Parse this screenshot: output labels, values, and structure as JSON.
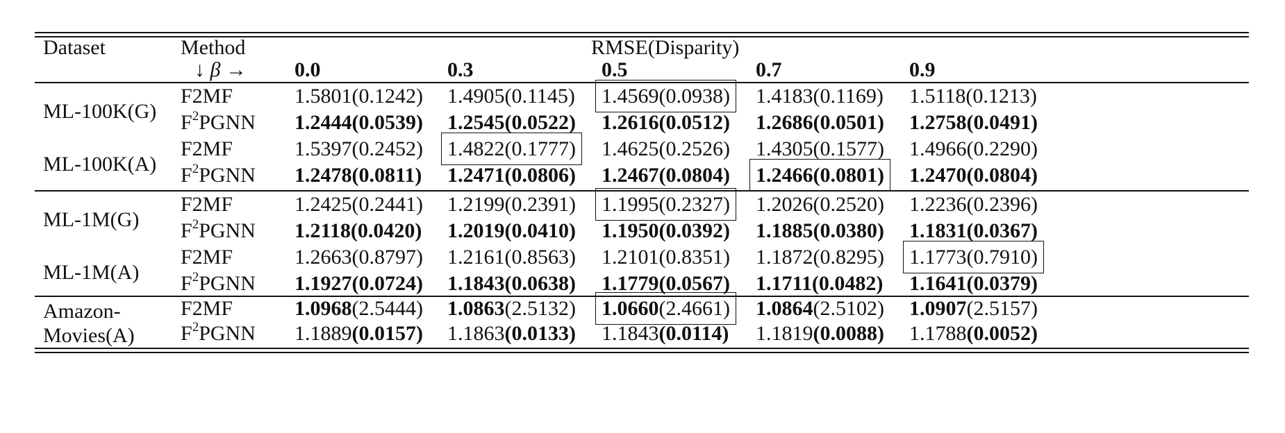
{
  "table": {
    "header": {
      "dataset": "Dataset",
      "method": "Method",
      "metric": "RMSE(Disparity)",
      "beta_label": "↓ β →",
      "betas": [
        "0.0",
        "0.3",
        "0.5",
        "0.7",
        "0.9"
      ]
    },
    "groups": [
      {
        "dataset": "ML-100K(G)",
        "rows": [
          {
            "method": "F2MF",
            "cells": [
              {
                "value": "1.5801",
                "disparity": "0.1242",
                "bold_value": false,
                "bold_disp": false,
                "boxed": false
              },
              {
                "value": "1.4905",
                "disparity": "0.1145",
                "bold_value": false,
                "bold_disp": false,
                "boxed": false
              },
              {
                "value": "1.4569",
                "disparity": "0.0938",
                "bold_value": false,
                "bold_disp": false,
                "boxed": true
              },
              {
                "value": "1.4183",
                "disparity": "0.1169",
                "bold_value": false,
                "bold_disp": false,
                "boxed": false
              },
              {
                "value": "1.5118",
                "disparity": "0.1213",
                "bold_value": false,
                "bold_disp": false,
                "boxed": false
              }
            ]
          },
          {
            "method": "F2PGNN",
            "cells": [
              {
                "value": "1.2444",
                "disparity": "0.0539",
                "bold_value": true,
                "bold_disp": true,
                "boxed": false
              },
              {
                "value": "1.2545",
                "disparity": "0.0522",
                "bold_value": true,
                "bold_disp": true,
                "boxed": false
              },
              {
                "value": "1.2616",
                "disparity": "0.0512",
                "bold_value": true,
                "bold_disp": true,
                "boxed": false
              },
              {
                "value": "1.2686",
                "disparity": "0.0501",
                "bold_value": true,
                "bold_disp": true,
                "boxed": false
              },
              {
                "value": "1.2758",
                "disparity": "0.0491",
                "bold_value": true,
                "bold_disp": true,
                "boxed": false
              }
            ]
          }
        ]
      },
      {
        "dataset": "ML-100K(A)",
        "rows": [
          {
            "method": "F2MF",
            "cells": [
              {
                "value": "1.5397",
                "disparity": "0.2452",
                "bold_value": false,
                "bold_disp": false,
                "boxed": false
              },
              {
                "value": "1.4822",
                "disparity": "0.1777",
                "bold_value": false,
                "bold_disp": false,
                "boxed": true
              },
              {
                "value": "1.4625",
                "disparity": "0.2526",
                "bold_value": false,
                "bold_disp": false,
                "boxed": false
              },
              {
                "value": "1.4305",
                "disparity": "0.1577",
                "bold_value": false,
                "bold_disp": false,
                "boxed": false
              },
              {
                "value": "1.4966",
                "disparity": "0.2290",
                "bold_value": false,
                "bold_disp": false,
                "boxed": false
              }
            ]
          },
          {
            "method": "F2PGNN",
            "cells": [
              {
                "value": "1.2478",
                "disparity": "0.0811",
                "bold_value": true,
                "bold_disp": true,
                "boxed": false
              },
              {
                "value": "1.2471",
                "disparity": "0.0806",
                "bold_value": true,
                "bold_disp": true,
                "boxed": false
              },
              {
                "value": "1.2467",
                "disparity": "0.0804",
                "bold_value": true,
                "bold_disp": true,
                "boxed": false
              },
              {
                "value": "1.2466",
                "disparity": "0.0801",
                "bold_value": true,
                "bold_disp": true,
                "boxed": true
              },
              {
                "value": "1.2470",
                "disparity": "0.0804",
                "bold_value": true,
                "bold_disp": true,
                "boxed": false
              }
            ]
          }
        ]
      },
      {
        "dataset": "ML-1M(G)",
        "rows": [
          {
            "method": "F2MF",
            "cells": [
              {
                "value": "1.2425",
                "disparity": "0.2441",
                "bold_value": false,
                "bold_disp": false,
                "boxed": false
              },
              {
                "value": "1.2199",
                "disparity": "0.2391",
                "bold_value": false,
                "bold_disp": false,
                "boxed": false
              },
              {
                "value": "1.1995",
                "disparity": "0.2327",
                "bold_value": false,
                "bold_disp": false,
                "boxed": true
              },
              {
                "value": "1.2026",
                "disparity": "0.2520",
                "bold_value": false,
                "bold_disp": false,
                "boxed": false
              },
              {
                "value": "1.2236",
                "disparity": "0.2396",
                "bold_value": false,
                "bold_disp": false,
                "boxed": false
              }
            ]
          },
          {
            "method": "F2PGNN",
            "cells": [
              {
                "value": "1.2118",
                "disparity": "0.0420",
                "bold_value": true,
                "bold_disp": true,
                "boxed": false
              },
              {
                "value": "1.2019",
                "disparity": "0.0410",
                "bold_value": true,
                "bold_disp": true,
                "boxed": false
              },
              {
                "value": "1.1950",
                "disparity": "0.0392",
                "bold_value": true,
                "bold_disp": true,
                "boxed": false
              },
              {
                "value": "1.1885",
                "disparity": "0.0380",
                "bold_value": true,
                "bold_disp": true,
                "boxed": false
              },
              {
                "value": "1.1831",
                "disparity": "0.0367",
                "bold_value": true,
                "bold_disp": true,
                "boxed": false
              }
            ]
          }
        ]
      },
      {
        "dataset": "ML-1M(A)",
        "rows": [
          {
            "method": "F2MF",
            "cells": [
              {
                "value": "1.2663",
                "disparity": "0.8797",
                "bold_value": false,
                "bold_disp": false,
                "boxed": false
              },
              {
                "value": "1.2161",
                "disparity": "0.8563",
                "bold_value": false,
                "bold_disp": false,
                "boxed": false
              },
              {
                "value": "1.2101",
                "disparity": "0.8351",
                "bold_value": false,
                "bold_disp": false,
                "boxed": false
              },
              {
                "value": "1.1872",
                "disparity": "0.8295",
                "bold_value": false,
                "bold_disp": false,
                "boxed": false
              },
              {
                "value": "1.1773",
                "disparity": "0.7910",
                "bold_value": false,
                "bold_disp": false,
                "boxed": true
              }
            ]
          },
          {
            "method": "F2PGNN",
            "cells": [
              {
                "value": "1.1927",
                "disparity": "0.0724",
                "bold_value": true,
                "bold_disp": true,
                "boxed": false
              },
              {
                "value": "1.1843",
                "disparity": "0.0638",
                "bold_value": true,
                "bold_disp": true,
                "boxed": false
              },
              {
                "value": "1.1779",
                "disparity": "0.0567",
                "bold_value": true,
                "bold_disp": true,
                "boxed": false
              },
              {
                "value": "1.1711",
                "disparity": "0.0482",
                "bold_value": true,
                "bold_disp": true,
                "boxed": false
              },
              {
                "value": "1.1641",
                "disparity": "0.0379",
                "bold_value": true,
                "bold_disp": true,
                "boxed": false
              }
            ]
          }
        ]
      },
      {
        "dataset": "Amazon-\nMovies(A)",
        "rows": [
          {
            "method": "F2MF",
            "cells": [
              {
                "value": "1.0968",
                "disparity": "2.5444",
                "bold_value": true,
                "bold_disp": false,
                "boxed": false
              },
              {
                "value": "1.0863",
                "disparity": "2.5132",
                "bold_value": true,
                "bold_disp": false,
                "boxed": false
              },
              {
                "value": "1.0660",
                "disparity": "2.4661",
                "bold_value": true,
                "bold_disp": false,
                "boxed": true
              },
              {
                "value": "1.0864",
                "disparity": "2.5102",
                "bold_value": true,
                "bold_disp": false,
                "boxed": false
              },
              {
                "value": "1.0907",
                "disparity": "2.5157",
                "bold_value": true,
                "bold_disp": false,
                "boxed": false
              }
            ]
          },
          {
            "method": "F2PGNN",
            "cells": [
              {
                "value": "1.1889",
                "disparity": "0.0157",
                "bold_value": false,
                "bold_disp": true,
                "boxed": false
              },
              {
                "value": "1.1863",
                "disparity": "0.0133",
                "bold_value": false,
                "bold_disp": true,
                "boxed": false
              },
              {
                "value": "1.1843",
                "disparity": "0.0114",
                "bold_value": false,
                "bold_disp": true,
                "boxed": false
              },
              {
                "value": "1.1819",
                "disparity": "0.0088",
                "bold_value": false,
                "bold_disp": true,
                "boxed": false
              },
              {
                "value": "1.1788",
                "disparity": "0.0052",
                "bold_value": false,
                "bold_disp": true,
                "boxed": false
              }
            ]
          }
        ]
      }
    ]
  }
}
